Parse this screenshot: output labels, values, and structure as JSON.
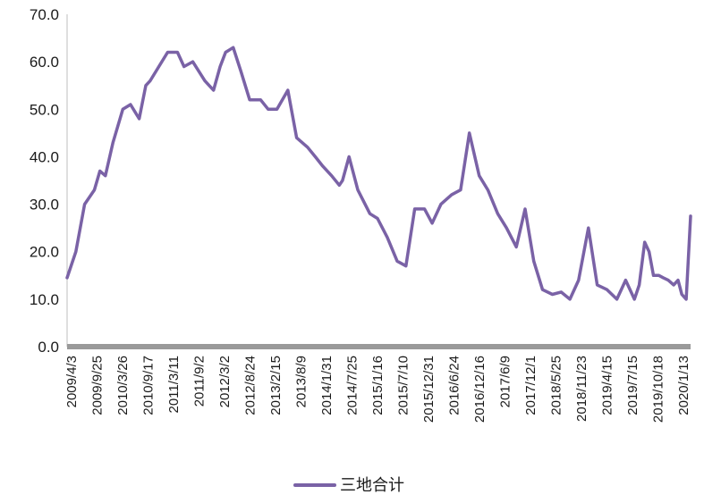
{
  "colors": {
    "series": "#7a62a6",
    "axis": "#bfbfbf",
    "text": "#1a1a1a"
  },
  "chart_data": {
    "type": "line",
    "title": "",
    "xlabel": "",
    "ylabel": "",
    "ylim": [
      0,
      70
    ],
    "y_ticks": [
      "0.0",
      "10.0",
      "20.0",
      "30.0",
      "40.0",
      "50.0",
      "60.0",
      "70.0"
    ],
    "x_tick_labels": [
      "2009/4/3",
      "2009/9/25",
      "2010/3/26",
      "2010/9/17",
      "2011/3/11",
      "2011/9/2",
      "2012/3/2",
      "2012/8/24",
      "2013/2/15",
      "2013/8/9",
      "2014/1/31",
      "2014/7/25",
      "2015/1/16",
      "2015/7/10",
      "2015/12/31",
      "2016/6/24",
      "2016/12/16",
      "2017/6/9",
      "2017/12/1",
      "2018/5/25",
      "2018/11/23",
      "2019/4/15",
      "2019/7/15",
      "2019/10/18",
      "2020/1/13"
    ],
    "grid": false,
    "legend_position": "bottom",
    "series": [
      {
        "name": "三地合计",
        "color": "#7a62a6",
        "x": [
          "2009/4/3",
          "2009/5/29",
          "2009/7/24",
          "2009/9/25",
          "2009/10/30",
          "2009/12/4",
          "2010/1/22",
          "2010/3/26",
          "2010/5/14",
          "2010/7/9",
          "2010/8/20",
          "2010/9/17",
          "2010/11/12",
          "2011/1/7",
          "2011/3/11",
          "2011/4/22",
          "2011/6/17",
          "2011/9/2",
          "2011/10/28",
          "2011/12/9",
          "2012/1/13",
          "2012/3/2",
          "2012/4/20",
          "2012/6/15",
          "2012/8/24",
          "2012/10/12",
          "2012/12/7",
          "2013/2/15",
          "2013/4/12",
          "2013/6/21",
          "2013/8/9",
          "2013/9/27",
          "2013/11/22",
          "2014/1/10",
          "2014/1/31",
          "2014/3/14",
          "2014/5/9",
          "2014/7/25",
          "2014/9/12",
          "2014/11/14",
          "2015/1/16",
          "2015/3/13",
          "2015/5/8",
          "2015/7/10",
          "2015/8/28",
          "2015/10/23",
          "2015/12/31",
          "2016/2/26",
          "2016/4/22",
          "2016/6/24",
          "2016/8/19",
          "2016/10/21",
          "2016/12/16",
          "2017/2/17",
          "2017/4/14",
          "2017/6/9",
          "2017/8/4",
          "2017/10/6",
          "2017/12/1",
          "2018/1/26",
          "2018/3/23",
          "2018/5/25",
          "2018/7/20",
          "2018/9/21",
          "2018/11/23",
          "2019/1/18",
          "2019/3/15",
          "2019/4/15",
          "2019/5/20",
          "2019/6/17",
          "2019/7/15",
          "2019/8/19",
          "2019/9/16",
          "2019/10/18",
          "2019/11/22",
          "2019/12/20",
          "2020/1/13",
          "2020/2/10",
          "2020/3/9"
        ],
        "y": [
          14.5,
          20,
          30,
          33,
          37,
          36,
          43,
          50,
          51,
          48,
          55,
          56,
          59,
          62,
          62,
          59,
          60,
          56,
          54,
          59,
          62,
          63,
          58,
          52,
          52,
          50,
          50,
          54,
          44,
          42,
          40,
          38,
          36,
          34,
          35,
          40,
          33,
          28,
          27,
          23,
          18,
          17,
          29,
          29,
          26,
          30,
          32,
          33,
          45,
          36,
          33,
          28,
          25,
          21,
          29,
          18,
          12,
          11,
          11.5,
          10,
          14,
          25,
          13,
          12,
          10,
          14,
          10,
          13,
          22,
          20,
          15,
          15,
          14.5,
          14,
          13,
          14,
          11,
          10,
          27.5
        ]
      }
    ]
  }
}
